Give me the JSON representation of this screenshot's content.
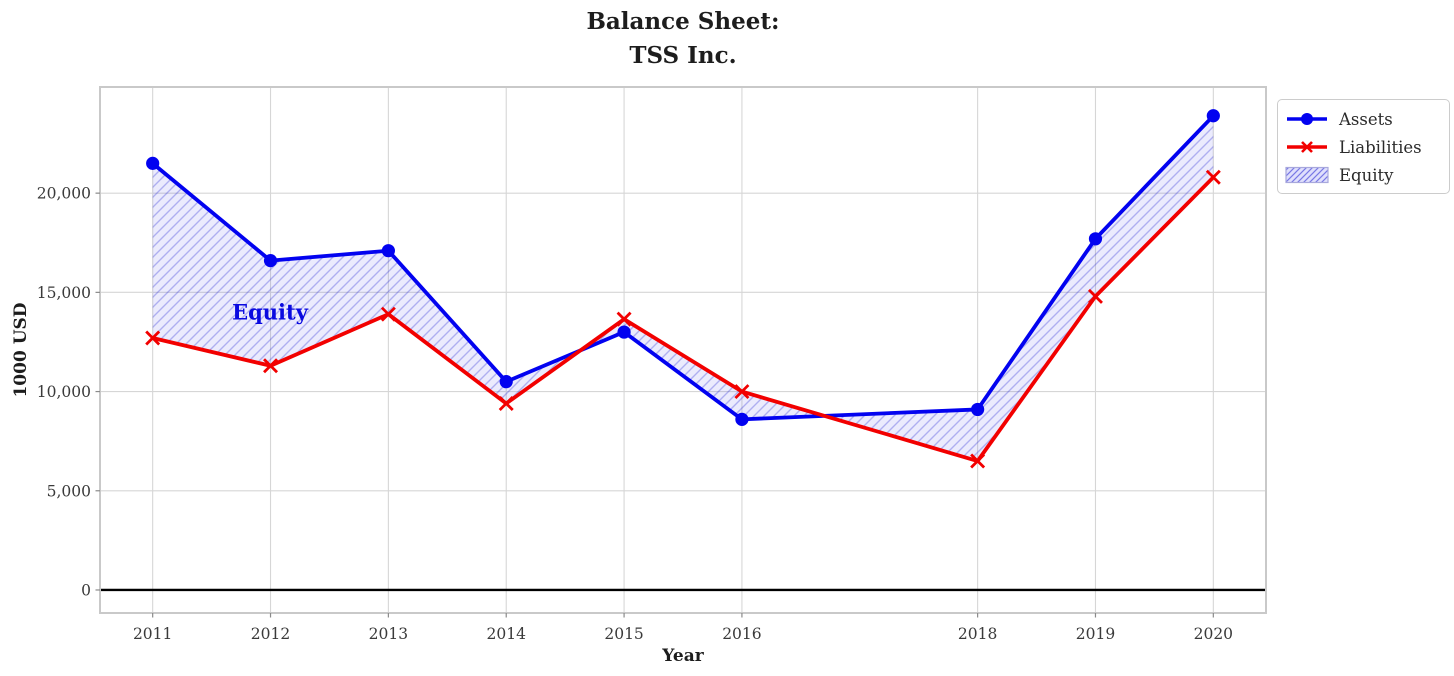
{
  "title": {
    "line1": "Balance Sheet:",
    "line2": "TSS Inc."
  },
  "axes": {
    "xlabel": "Year",
    "ylabel": "1000 USD"
  },
  "annotation": {
    "text": "Equity"
  },
  "legend": {
    "items": [
      {
        "label": "Assets",
        "swatch": "blue-line-circle"
      },
      {
        "label": "Liabilities",
        "swatch": "red-line-x"
      },
      {
        "label": "Equity",
        "swatch": "hatched-patch"
      }
    ]
  },
  "colors": {
    "assets_blue": "#0202f0",
    "liabilities_red": "#f20000",
    "hatch_fill_bg": "rgba(30,30,235,0.09)",
    "hatch_stroke": "rgba(35,35,210,0.30)",
    "grid": "#d6d6d6",
    "spine": "#c9c9c9",
    "tick_text": "#3a3a3a",
    "zero_line": "#000000",
    "annotation_blue": "#0a0ae0",
    "legend_patch_border": "#a8a8dc"
  },
  "chart_data": {
    "type": "line",
    "title": "Balance Sheet: TSS Inc.",
    "xlabel": "Year",
    "ylabel": "1000 USD",
    "x": [
      2011,
      2012,
      2013,
      2014,
      2015,
      2016,
      2018,
      2019,
      2020
    ],
    "xticklabels": [
      "2011",
      "2012",
      "2013",
      "2014",
      "2015",
      "2016",
      "2018",
      "2019",
      "2020"
    ],
    "yticks": [
      0,
      5000,
      10000,
      15000,
      20000
    ],
    "yticklabels": [
      "0",
      "5,000",
      "10,000",
      "15,000",
      "20,000"
    ],
    "xlim": [
      2010.553,
      2020.447
    ],
    "ylim": [
      -1160,
      25350
    ],
    "grid": true,
    "legend_position": "outside-upper-right",
    "note": "No data point for 2017; x-ticks skip from 2016 to 2018",
    "series": [
      {
        "name": "Assets",
        "marker": "circle",
        "color": "#0202f0",
        "values": [
          21500,
          16600,
          17100,
          10500,
          13000,
          8600,
          9100,
          17700,
          23900
        ]
      },
      {
        "name": "Liabilities",
        "marker": "x",
        "color": "#f20000",
        "values": [
          12700,
          11300,
          13900,
          9400,
          13650,
          10000,
          6500,
          14800,
          20800
        ]
      }
    ],
    "fill_between": {
      "name": "Equity",
      "between": [
        "Assets",
        "Liabilities"
      ],
      "hatch": "//"
    },
    "zero_line_y": 0
  }
}
